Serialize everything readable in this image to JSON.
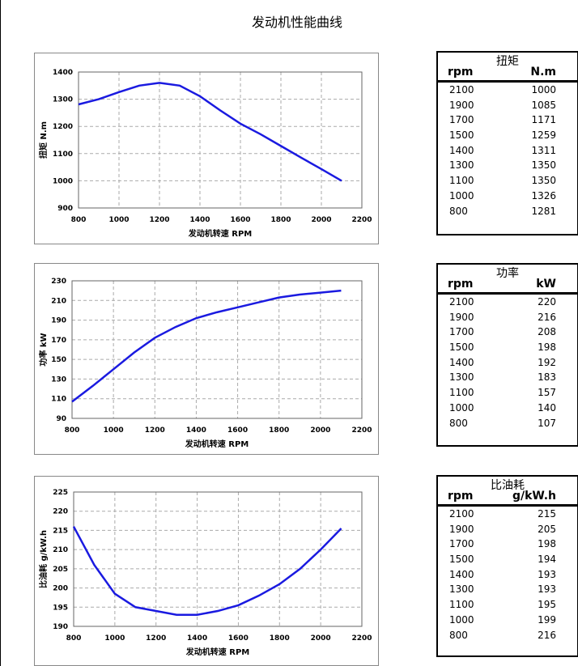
{
  "title": "发动机性能曲线",
  "chart_data": [
    {
      "type": "line",
      "xlabel": "发动机转速 RPM",
      "ylabel": "扭矩 N.m",
      "xlim": [
        800,
        2200
      ],
      "ylim": [
        900,
        1400
      ],
      "xticks": [
        800,
        1000,
        1200,
        1400,
        1600,
        1800,
        2000,
        2200
      ],
      "yticks": [
        900,
        1000,
        1100,
        1200,
        1300,
        1400
      ],
      "grid": true,
      "color": "#1a1ae0",
      "x": [
        800,
        900,
        1000,
        1100,
        1200,
        1300,
        1400,
        1500,
        1600,
        1700,
        1800,
        1900,
        2000,
        2100
      ],
      "y": [
        1281,
        1300,
        1326,
        1350,
        1360,
        1350,
        1311,
        1259,
        1210,
        1171,
        1128,
        1085,
        1043,
        1000
      ]
    },
    {
      "type": "line",
      "xlabel": "发动机转速  RPM",
      "ylabel": "功率  kW",
      "xlim": [
        800,
        2200
      ],
      "ylim": [
        90,
        230
      ],
      "xticks": [
        800,
        1000,
        1200,
        1400,
        1600,
        1800,
        2000,
        2200
      ],
      "yticks": [
        90,
        110,
        130,
        150,
        170,
        190,
        210,
        230
      ],
      "grid": true,
      "color": "#1a1ae0",
      "x": [
        800,
        900,
        1000,
        1100,
        1200,
        1300,
        1400,
        1500,
        1600,
        1700,
        1800,
        1900,
        2000,
        2100
      ],
      "y": [
        107,
        123,
        140,
        157,
        172,
        183,
        192,
        198,
        203,
        208,
        213,
        216,
        218,
        220
      ]
    },
    {
      "type": "line",
      "xlabel": "发动机转速 RPM",
      "ylabel": "比油耗 g/kW.h",
      "xlim": [
        800,
        2200
      ],
      "ylim": [
        190,
        225
      ],
      "xticks": [
        800,
        1000,
        1200,
        1400,
        1600,
        1800,
        2000,
        2200
      ],
      "yticks": [
        190,
        195,
        200,
        205,
        210,
        215,
        220,
        225
      ],
      "grid": true,
      "color": "#1a1ae0",
      "x": [
        800,
        900,
        1000,
        1100,
        1200,
        1300,
        1400,
        1500,
        1600,
        1700,
        1800,
        1900,
        2000,
        2100
      ],
      "y": [
        216,
        206,
        198.5,
        195,
        194,
        193,
        193,
        194,
        195.5,
        198,
        201,
        205,
        210,
        215.5
      ]
    }
  ],
  "tables": [
    {
      "title": "扭矩",
      "col1": "rpm",
      "col2": "N.m",
      "rows": [
        [
          "2100",
          "1000"
        ],
        [
          "1900",
          "1085"
        ],
        [
          "1700",
          "1171"
        ],
        [
          "1500",
          "1259"
        ],
        [
          "1400",
          "1311"
        ],
        [
          "1300",
          "1350"
        ],
        [
          "1100",
          "1350"
        ],
        [
          "1000",
          "1326"
        ],
        [
          "800",
          "1281"
        ]
      ]
    },
    {
      "title": "功率",
      "col1": "rpm",
      "col2": "kW",
      "rows": [
        [
          "2100",
          "220"
        ],
        [
          "1900",
          "216"
        ],
        [
          "1700",
          "208"
        ],
        [
          "1500",
          "198"
        ],
        [
          "1400",
          "192"
        ],
        [
          "1300",
          "183"
        ],
        [
          "1100",
          "157"
        ],
        [
          "1000",
          "140"
        ],
        [
          "800",
          "107"
        ]
      ]
    },
    {
      "title": "比油耗",
      "col1": "rpm",
      "col2": "g/kW.h",
      "rows": [
        [
          "2100",
          "215"
        ],
        [
          "1900",
          "205"
        ],
        [
          "1700",
          "198"
        ],
        [
          "1500",
          "194"
        ],
        [
          "1400",
          "193"
        ],
        [
          "1300",
          "193"
        ],
        [
          "1100",
          "195"
        ],
        [
          "1000",
          "199"
        ],
        [
          "800",
          "216"
        ]
      ]
    }
  ]
}
